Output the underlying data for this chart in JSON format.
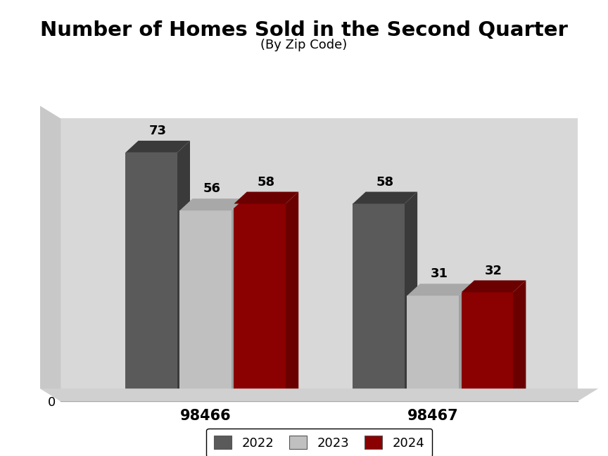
{
  "title": "Number of Homes Sold in the Second Quarter",
  "subtitle": "(By Zip Code)",
  "categories": [
    "98466",
    "98467"
  ],
  "years": [
    "2022",
    "2023",
    "2024"
  ],
  "values": {
    "98466": [
      73,
      56,
      58
    ],
    "98467": [
      58,
      31,
      32
    ]
  },
  "bar_colors_front": [
    "#5a5a5a",
    "#c0c0c0",
    "#8b0000"
  ],
  "bar_colors_top": [
    "#3a3a3a",
    "#a8a8a8",
    "#6b0000"
  ],
  "bar_colors_side": [
    "#3a3a3a",
    "#a0a0a0",
    "#6b0000"
  ],
  "outer_bg_color": "#ffffff",
  "plot_bg_color": "#d8d8d8",
  "wall_bg_color": "#c8c8c8",
  "ylim": [
    0,
    83
  ],
  "yticks": [
    0,
    10,
    20,
    30,
    40,
    50,
    60,
    70,
    80
  ],
  "title_fontsize": 21,
  "subtitle_fontsize": 13,
  "label_fontsize": 13,
  "tick_fontsize": 13,
  "xtick_fontsize": 15,
  "bar_width": 0.1,
  "depth_x": 0.025,
  "depth_y": 3.5,
  "group_centers": [
    0.28,
    0.72
  ],
  "xlim": [
    0.0,
    1.0
  ],
  "legend_labels": [
    "2022",
    "2023",
    "2024"
  ]
}
